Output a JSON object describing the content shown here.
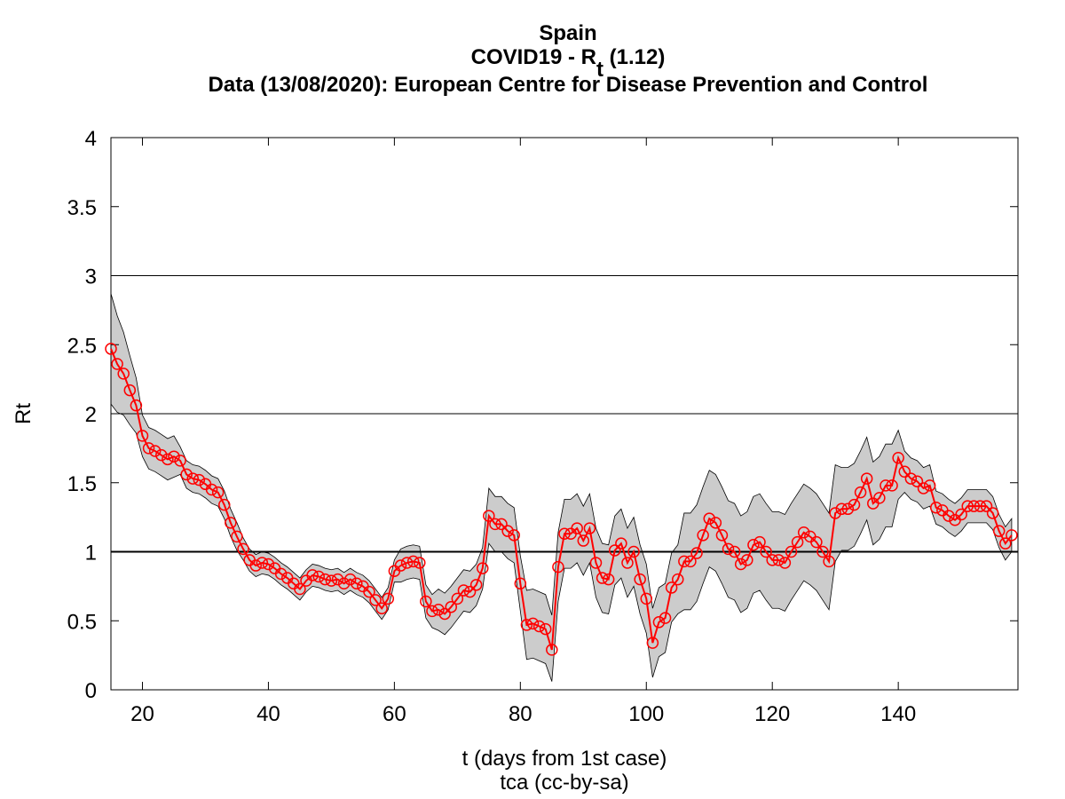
{
  "chart_data": {
    "type": "line",
    "title_lines": [
      [
        "Spain"
      ],
      [
        "COVID19 - R",
        "t",
        " (1.12)"
      ],
      [
        "Data (13/08/2020): European Centre for Disease Prevention and Control"
      ]
    ],
    "ylabel": [
      "R",
      "t"
    ],
    "xlabel": "t (days from 1st case)",
    "note": "tca (cc-by-sa)",
    "xlim": [
      15,
      159
    ],
    "xticks": [
      20,
      40,
      60,
      80,
      100,
      120,
      140
    ],
    "ylim": [
      0,
      4
    ],
    "yticks": [
      0,
      0.5,
      1,
      1.5,
      2,
      2.5,
      3,
      3.5,
      4
    ],
    "reference_lines": [
      1,
      2,
      3
    ],
    "color": "#ff0000",
    "band_color": "#cccccc",
    "x": [
      15,
      16,
      17,
      18,
      19,
      20,
      21,
      22,
      23,
      24,
      25,
      26,
      27,
      28,
      29,
      30,
      31,
      32,
      33,
      34,
      35,
      36,
      37,
      38,
      39,
      40,
      41,
      42,
      43,
      44,
      45,
      46,
      47,
      48,
      49,
      50,
      51,
      52,
      53,
      54,
      55,
      56,
      57,
      58,
      59,
      60,
      61,
      62,
      63,
      64,
      65,
      66,
      67,
      68,
      69,
      70,
      71,
      72,
      73,
      74,
      75,
      76,
      77,
      78,
      79,
      80,
      81,
      82,
      83,
      84,
      85,
      86,
      87,
      88,
      89,
      90,
      91,
      92,
      93,
      94,
      95,
      96,
      97,
      98,
      99,
      100,
      101,
      102,
      103,
      104,
      105,
      106,
      107,
      108,
      109,
      110,
      111,
      112,
      113,
      114,
      115,
      116,
      117,
      118,
      119,
      120,
      121,
      122,
      123,
      124,
      125,
      126,
      127,
      128,
      129,
      130,
      131,
      132,
      133,
      134,
      135,
      136,
      137,
      138,
      139,
      140,
      141,
      142,
      143,
      144,
      145,
      146,
      147,
      148,
      149,
      150,
      151,
      152,
      153,
      154,
      155,
      156,
      157,
      158
    ],
    "values": [
      2.47,
      2.36,
      2.29,
      2.17,
      2.06,
      1.84,
      1.75,
      1.73,
      1.7,
      1.67,
      1.69,
      1.66,
      1.56,
      1.53,
      1.52,
      1.49,
      1.45,
      1.43,
      1.34,
      1.21,
      1.11,
      1.02,
      0.94,
      0.9,
      0.92,
      0.91,
      0.88,
      0.84,
      0.81,
      0.77,
      0.73,
      0.79,
      0.83,
      0.82,
      0.8,
      0.79,
      0.8,
      0.77,
      0.8,
      0.77,
      0.75,
      0.71,
      0.65,
      0.59,
      0.66,
      0.86,
      0.9,
      0.92,
      0.93,
      0.92,
      0.64,
      0.57,
      0.58,
      0.55,
      0.6,
      0.66,
      0.72,
      0.71,
      0.76,
      0.88,
      1.26,
      1.2,
      1.2,
      1.15,
      1.12,
      0.77,
      0.47,
      0.48,
      0.46,
      0.44,
      0.29,
      0.89,
      1.13,
      1.13,
      1.17,
      1.08,
      1.17,
      0.92,
      0.81,
      0.8,
      1.01,
      1.06,
      0.92,
      1.0,
      0.8,
      0.66,
      0.34,
      0.49,
      0.52,
      0.74,
      0.8,
      0.93,
      0.93,
      0.99,
      1.12,
      1.24,
      1.21,
      1.12,
      1.02,
      1.0,
      0.91,
      0.94,
      1.05,
      1.07,
      1.0,
      0.94,
      0.94,
      0.92,
      1.0,
      1.07,
      1.14,
      1.11,
      1.07,
      1.0,
      0.93,
      1.28,
      1.31,
      1.31,
      1.34,
      1.43,
      1.53,
      1.35,
      1.39,
      1.48,
      1.48,
      1.68,
      1.58,
      1.53,
      1.51,
      1.46,
      1.48,
      1.32,
      1.3,
      1.26,
      1.23,
      1.27,
      1.33,
      1.33,
      1.33,
      1.33,
      1.28,
      1.15,
      1.06,
      1.12
    ],
    "upper": [
      2.87,
      2.71,
      2.59,
      2.42,
      2.26,
      1.99,
      1.9,
      1.88,
      1.85,
      1.82,
      1.84,
      1.76,
      1.66,
      1.63,
      1.62,
      1.59,
      1.55,
      1.53,
      1.44,
      1.31,
      1.21,
      1.1,
      1.02,
      0.98,
      1.0,
      0.99,
      0.96,
      0.92,
      0.89,
      0.85,
      0.81,
      0.87,
      0.91,
      0.9,
      0.88,
      0.87,
      0.88,
      0.85,
      0.88,
      0.85,
      0.83,
      0.79,
      0.73,
      0.67,
      0.74,
      0.94,
      1.02,
      1.04,
      1.05,
      1.04,
      0.76,
      0.69,
      0.73,
      0.7,
      0.75,
      0.81,
      0.87,
      0.86,
      0.91,
      1.03,
      1.46,
      1.4,
      1.4,
      1.35,
      1.32,
      0.97,
      0.72,
      0.73,
      0.71,
      0.69,
      0.54,
      1.14,
      1.38,
      1.38,
      1.42,
      1.33,
      1.42,
      1.17,
      1.06,
      1.05,
      1.26,
      1.31,
      1.17,
      1.25,
      1.05,
      0.91,
      0.59,
      0.74,
      0.77,
      0.99,
      1.05,
      1.28,
      1.28,
      1.34,
      1.47,
      1.59,
      1.56,
      1.47,
      1.37,
      1.35,
      1.26,
      1.29,
      1.4,
      1.42,
      1.35,
      1.29,
      1.29,
      1.27,
      1.35,
      1.42,
      1.49,
      1.46,
      1.42,
      1.35,
      1.28,
      1.63,
      1.61,
      1.61,
      1.64,
      1.73,
      1.83,
      1.65,
      1.69,
      1.78,
      1.78,
      1.88,
      1.73,
      1.68,
      1.66,
      1.61,
      1.63,
      1.44,
      1.42,
      1.38,
      1.35,
      1.39,
      1.45,
      1.45,
      1.45,
      1.45,
      1.4,
      1.27,
      1.18,
      1.24
    ],
    "lower": [
      2.07,
      2.01,
      1.99,
      1.92,
      1.86,
      1.69,
      1.6,
      1.58,
      1.55,
      1.52,
      1.54,
      1.56,
      1.46,
      1.43,
      1.42,
      1.39,
      1.35,
      1.33,
      1.24,
      1.11,
      1.01,
      0.94,
      0.86,
      0.82,
      0.84,
      0.83,
      0.8,
      0.76,
      0.73,
      0.69,
      0.65,
      0.71,
      0.75,
      0.74,
      0.72,
      0.71,
      0.72,
      0.69,
      0.72,
      0.69,
      0.67,
      0.63,
      0.57,
      0.51,
      0.58,
      0.78,
      0.78,
      0.8,
      0.81,
      0.8,
      0.52,
      0.45,
      0.43,
      0.4,
      0.45,
      0.51,
      0.57,
      0.56,
      0.61,
      0.73,
      1.06,
      1.0,
      1.0,
      0.95,
      0.92,
      0.57,
      0.22,
      0.23,
      0.21,
      0.19,
      0.06,
      0.64,
      0.88,
      0.88,
      0.92,
      0.83,
      0.92,
      0.67,
      0.56,
      0.55,
      0.76,
      0.81,
      0.67,
      0.75,
      0.55,
      0.41,
      0.09,
      0.24,
      0.27,
      0.49,
      0.55,
      0.58,
      0.58,
      0.64,
      0.77,
      0.89,
      0.86,
      0.77,
      0.67,
      0.65,
      0.56,
      0.59,
      0.7,
      0.72,
      0.65,
      0.59,
      0.59,
      0.57,
      0.65,
      0.72,
      0.79,
      0.76,
      0.72,
      0.65,
      0.58,
      0.93,
      1.01,
      1.01,
      1.04,
      1.13,
      1.23,
      1.05,
      1.09,
      1.18,
      1.18,
      1.38,
      1.43,
      1.38,
      1.36,
      1.31,
      1.33,
      1.2,
      1.18,
      1.14,
      1.11,
      1.15,
      1.21,
      1.21,
      1.21,
      1.21,
      1.16,
      1.03,
      0.94,
      1.0
    ]
  }
}
